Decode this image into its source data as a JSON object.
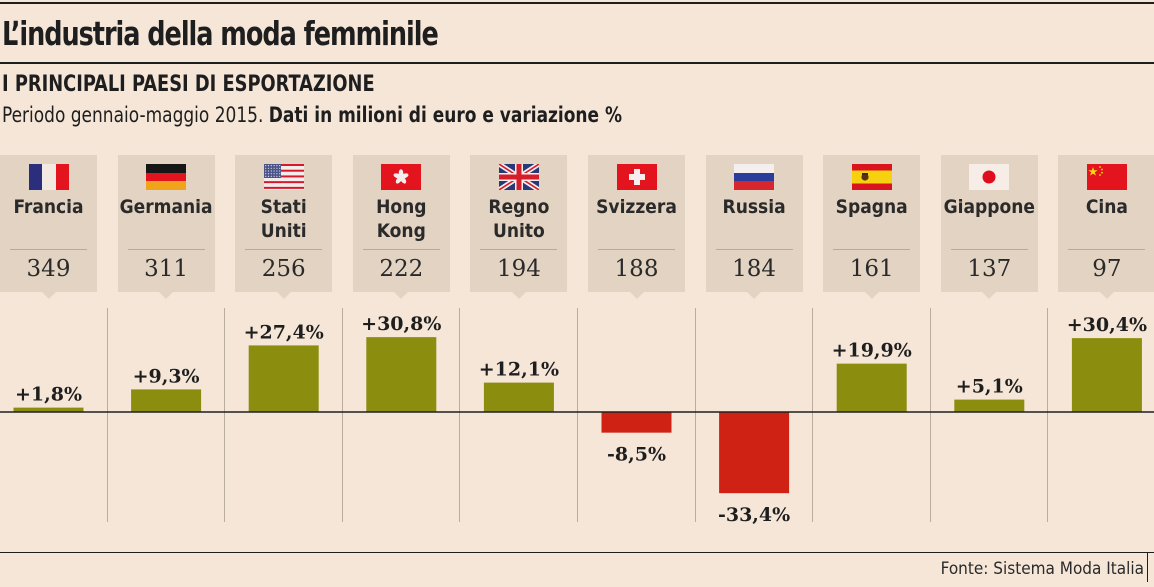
{
  "header": {
    "title": "L’industria della moda femminile",
    "subtitle": "I PRINCIPALI PAESI DI ESPORTAZIONE",
    "description_plain": "Periodo gennaio-maggio 2015. ",
    "description_bold": "Dati in milioni di euro e variazione %"
  },
  "source": "Fonte: Sistema Moda Italia",
  "colors": {
    "positive": "#8a8d0d",
    "negative": "#cf2214",
    "card": "#e3d3c2",
    "background": "#f5e6d8"
  },
  "countries": [
    {
      "name": "Francia",
      "flag": "france-flag",
      "value": "349",
      "change": "+1,8%"
    },
    {
      "name": "Germania",
      "flag": "germany-flag",
      "value": "311",
      "change": "+9,3%"
    },
    {
      "name": "Stati\nUniti",
      "flag": "usa-flag",
      "value": "256",
      "change": "+27,4%"
    },
    {
      "name": "Hong\nKong",
      "flag": "hong-kong-flag",
      "value": "222",
      "change": "+30,8%"
    },
    {
      "name": "Regno\nUnito",
      "flag": "uk-flag",
      "value": "194",
      "change": "+12,1%"
    },
    {
      "name": "Svizzera",
      "flag": "switzerland-flag",
      "value": "188",
      "change": "-8,5%"
    },
    {
      "name": "Russia",
      "flag": "russia-flag",
      "value": "184",
      "change": "-33,4%"
    },
    {
      "name": "Spagna",
      "flag": "spain-flag",
      "value": "161",
      "change": "+19,9%"
    },
    {
      "name": "Giappone",
      "flag": "japan-flag",
      "value": "137",
      "change": "+5,1%"
    },
    {
      "name": "Cina",
      "flag": "china-flag",
      "value": "97",
      "change": "+30,4%"
    }
  ],
  "chart_data": {
    "type": "bar",
    "title": "I principali paesi di esportazione",
    "subtitle": "Periodo gennaio-maggio 2015. Dati in milioni di euro e variazione %",
    "categories": [
      "Francia",
      "Germania",
      "Stati Uniti",
      "Hong Kong",
      "Regno Unito",
      "Svizzera",
      "Russia",
      "Spagna",
      "Giappone",
      "Cina"
    ],
    "series": [
      {
        "name": "Esportazioni (milioni di euro)",
        "values": [
          349,
          311,
          256,
          222,
          194,
          188,
          184,
          161,
          137,
          97
        ]
      },
      {
        "name": "Variazione %",
        "values": [
          1.8,
          9.3,
          27.4,
          30.8,
          12.1,
          -8.5,
          -33.4,
          19.9,
          5.1,
          30.4
        ]
      }
    ],
    "data_labels": [
      "+1,8%",
      "+9,3%",
      "+27,4%",
      "+30,8%",
      "+12,1%",
      "-8,5%",
      "-33,4%",
      "+19,9%",
      "+5,1%",
      "+30,4%"
    ],
    "xlabel": "",
    "ylabel": "Variazione %",
    "ylim": [
      -40,
      35
    ],
    "grid": false,
    "legend": "none",
    "source": "Fonte: Sistema Moda Italia"
  }
}
